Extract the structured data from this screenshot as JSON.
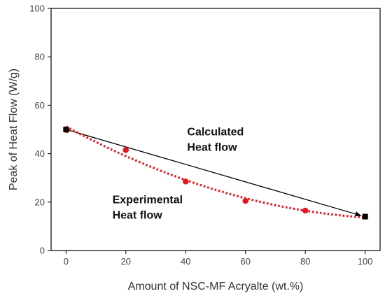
{
  "chart_data": {
    "type": "scatter",
    "xlabel": "Amount  of NSC-MF Acryalte (wt.%)",
    "ylabel": "Peak of Heat Flow (W/g)",
    "xlim": [
      -5,
      105
    ],
    "ylim": [
      0,
      100
    ],
    "xticks": [
      0,
      20,
      40,
      60,
      80,
      100
    ],
    "yticks": [
      0,
      20,
      40,
      60,
      80,
      100
    ],
    "grid": false,
    "series": [
      {
        "name": "Calculated Heat flow",
        "style": "line-with-square-endpoints-and-arrow",
        "color": "#000000",
        "x": [
          0,
          100
        ],
        "y": [
          50,
          14
        ]
      },
      {
        "name": "Experimental Heat flow",
        "style": "points-with-dotted-fit",
        "color": "#e8141c",
        "x": [
          0,
          20,
          40,
          60,
          80,
          100
        ],
        "y": [
          50,
          41.5,
          28.5,
          20.5,
          16.5,
          14
        ]
      }
    ],
    "annotations": [
      {
        "lines": [
          "Calculated",
          "Heat flow"
        ],
        "x": 40.5,
        "y": 47.5
      },
      {
        "lines": [
          "Experimental",
          "Heat flow"
        ],
        "x": 15.5,
        "y": 19.5
      }
    ]
  }
}
